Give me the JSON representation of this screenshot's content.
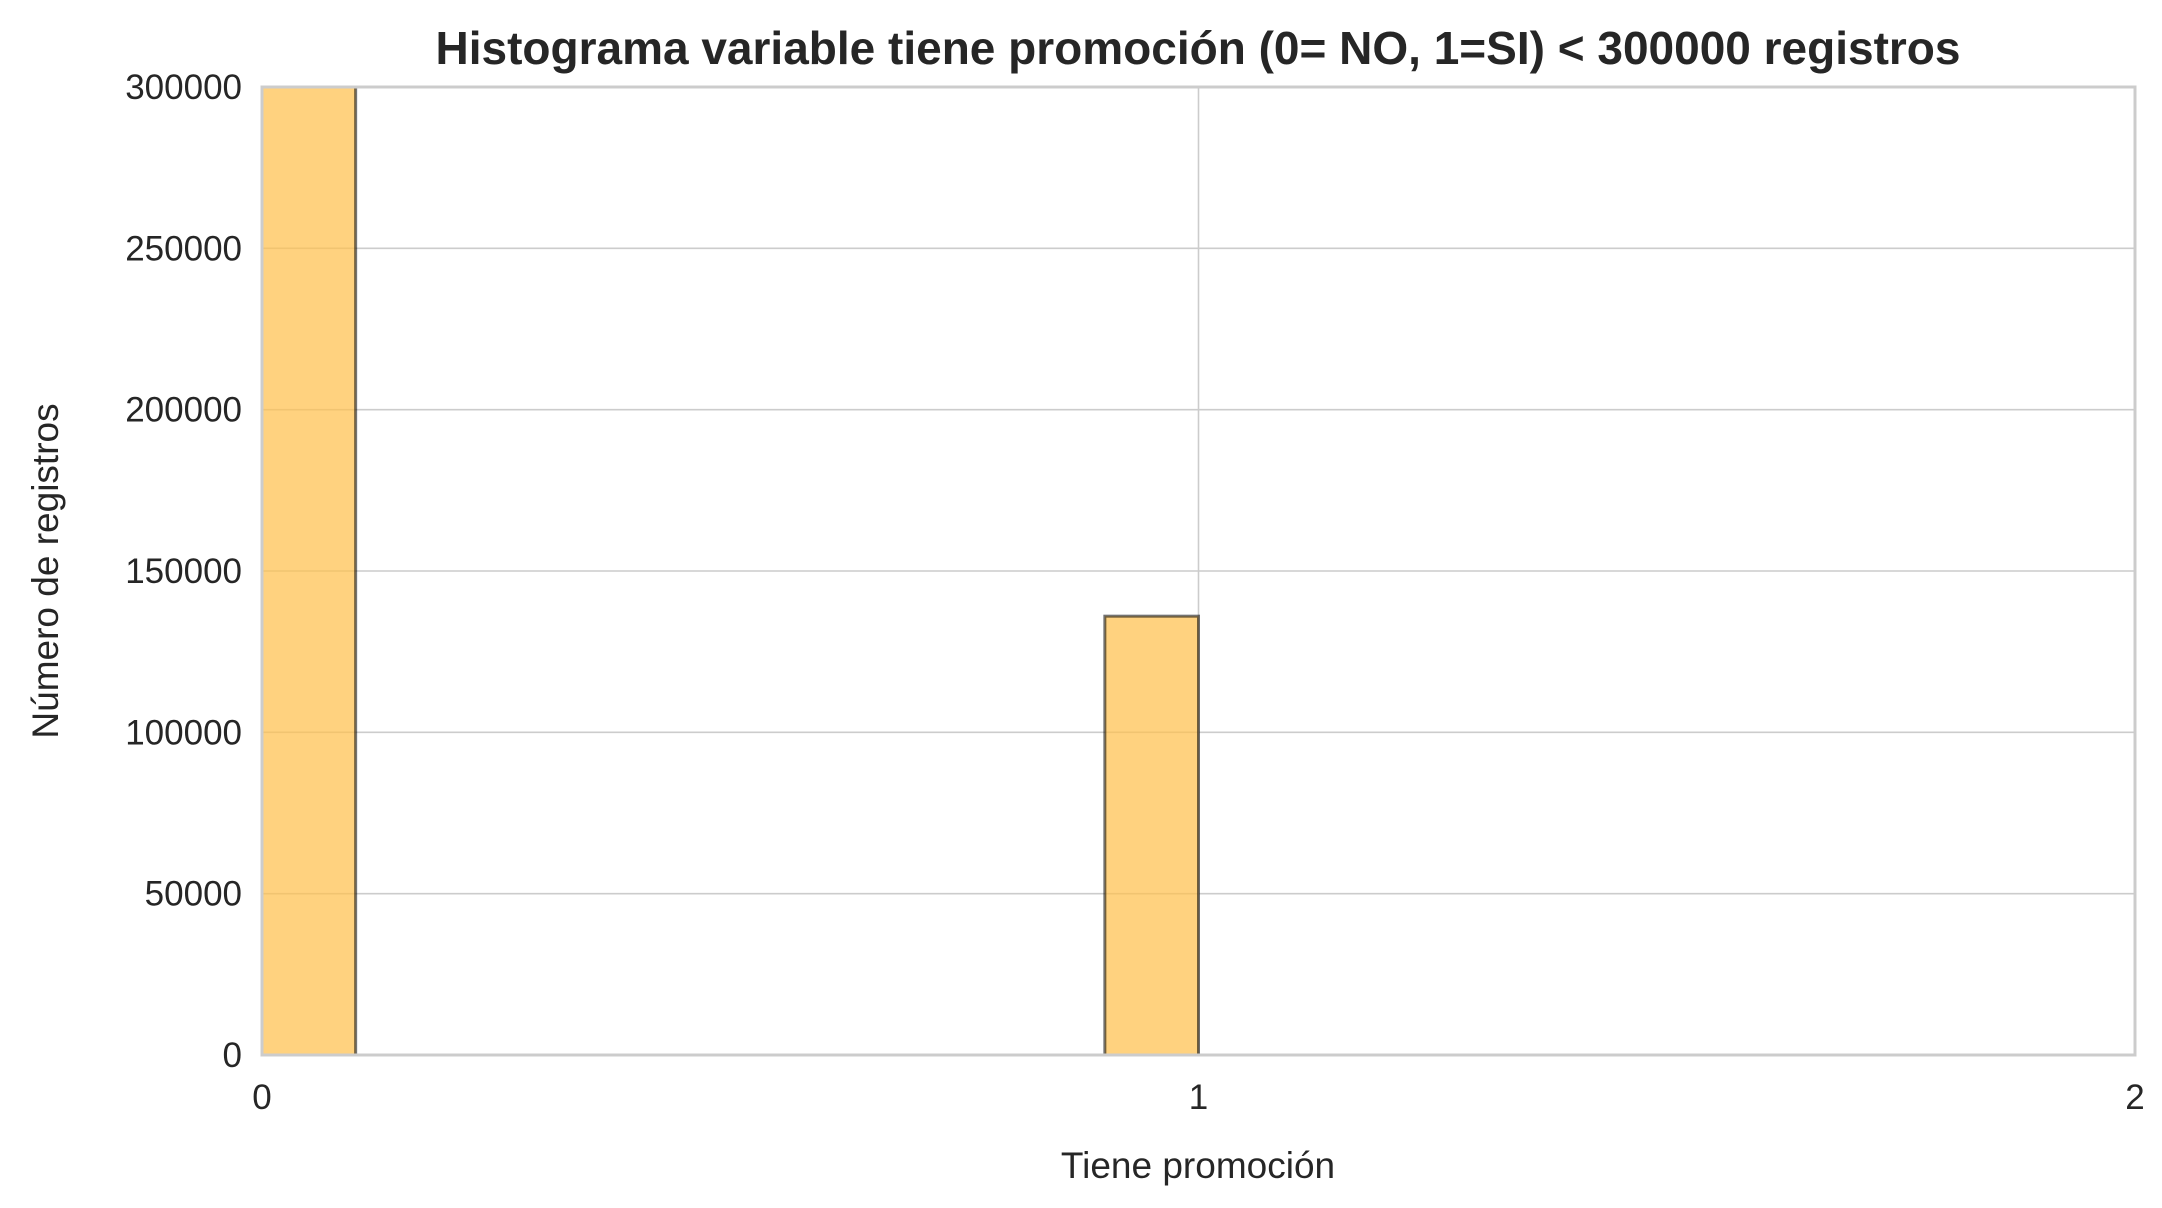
{
  "chart_data": {
    "type": "bar",
    "title": "Histograma variable tiene promoción (0= NO, 1=SI) < 300000 registros",
    "xlabel": "Tiene promoción",
    "ylabel": "Número de registros",
    "xlim": [
      0,
      2
    ],
    "ylim": [
      0,
      300000
    ],
    "xticks": [
      "0",
      "1",
      "2"
    ],
    "yticks": [
      "0",
      "50000",
      "100000",
      "150000",
      "200000",
      "250000",
      "300000"
    ],
    "grid": true,
    "bars": [
      {
        "x_start": 0.0,
        "x_end": 0.1,
        "value": 300000
      },
      {
        "x_start": 0.9,
        "x_end": 1.0,
        "value": 136000
      }
    ],
    "colors": {
      "bar": "#ffc04d",
      "grid": "#cccccc",
      "text": "#262626"
    }
  }
}
